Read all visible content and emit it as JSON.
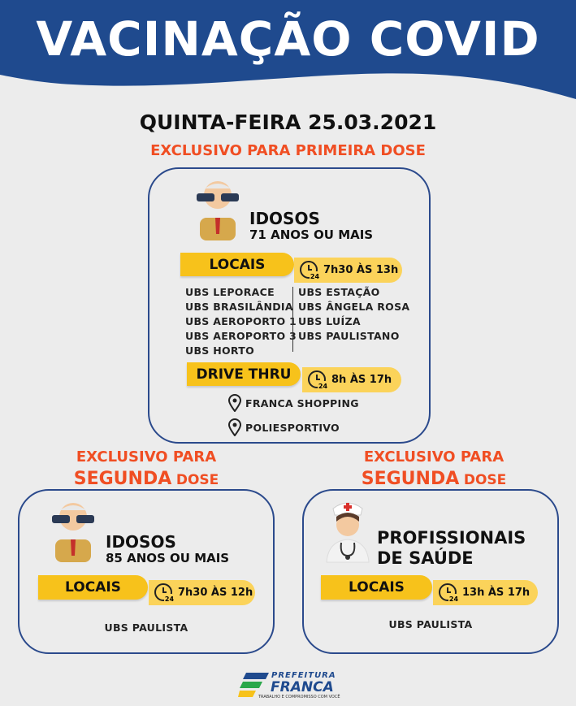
{
  "header": {
    "title": "VACINAÇÃO COVID"
  },
  "date": "QUINTA-FEIRA 25.03.2021",
  "clock_label": "24",
  "first_dose": {
    "heading": "EXCLUSIVO PARA PRIMEIRA DOSE",
    "group": "IDOSOS",
    "subgroup": "71 ANOS OU MAIS",
    "locais_label": "LOCAIS",
    "hours": "7h30 ÀS 13h",
    "sites_left": [
      "UBS LEPORACE",
      "UBS BRASILÂNDIA",
      "UBS AEROPORTO 1",
      "UBS AEROPORTO 3",
      "UBS HORTO"
    ],
    "sites_right": [
      "UBS ESTAÇÃO",
      "UBS ÂNGELA ROSA",
      "UBS LUÍZA",
      "UBS PAULISTANO"
    ],
    "drive_label": "DRIVE THRU",
    "drive_hours": "8h ÀS 17h",
    "drive_sites": [
      "FRANCA SHOPPING",
      "POLIESPORTIVO"
    ]
  },
  "second_dose_elderly": {
    "heading_line1": "EXCLUSIVO PARA",
    "heading_strong": "SEGUNDA",
    "heading_dose": "DOSE",
    "group": "IDOSOS",
    "subgroup": "85 ANOS OU MAIS",
    "locais_label": "LOCAIS",
    "hours": "7h30 ÀS 12h",
    "site": "UBS PAULISTA"
  },
  "second_dose_health": {
    "heading_line1": "EXCLUSIVO PARA",
    "heading_strong": "SEGUNDA",
    "heading_dose": "DOSE",
    "group_line1": "PROFISSIONAIS",
    "group_line2": "DE SAÚDE",
    "locais_label": "LOCAIS",
    "hours": "13h ÀS 17h",
    "site": "UBS PAULISTA"
  },
  "footer": {
    "line1": "PREFEITURA",
    "line2": "FRANCA",
    "tagline": "TRABALHO E COMPROMISSO COM VOCÊ"
  }
}
